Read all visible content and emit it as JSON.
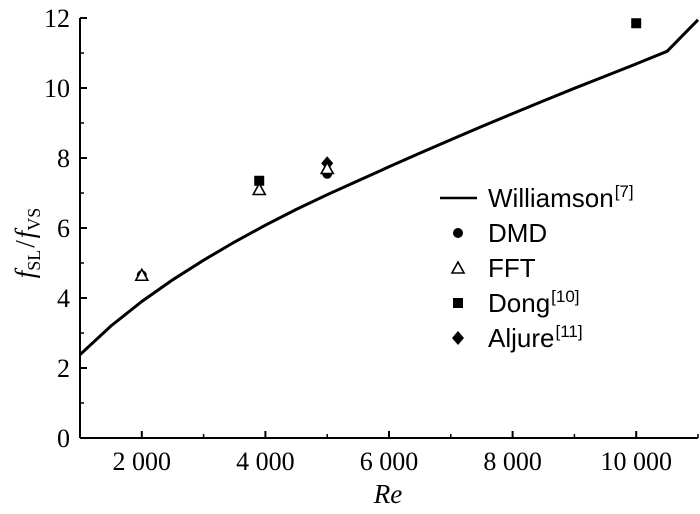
{
  "chart_data": {
    "type": "scatter",
    "xlabel": "Re",
    "ylabel": {
      "f1": "f",
      "sub1": "SL",
      "slash": "/",
      "f2": "f",
      "sub2": "VS"
    },
    "xlim": [
      1000,
      11000
    ],
    "ylim": [
      0,
      12
    ],
    "x_ticks": [
      {
        "value": 2000,
        "label": "2 000"
      },
      {
        "value": 4000,
        "label": "4 000"
      },
      {
        "value": 6000,
        "label": "6 000"
      },
      {
        "value": 8000,
        "label": "8 000"
      },
      {
        "value": 10000,
        "label": "10 000"
      }
    ],
    "y_ticks": [
      {
        "value": 0,
        "label": "0"
      },
      {
        "value": 2,
        "label": "2"
      },
      {
        "value": 4,
        "label": "4"
      },
      {
        "value": 6,
        "label": "6"
      },
      {
        "value": 8,
        "label": "8"
      },
      {
        "value": 10,
        "label": "10"
      },
      {
        "value": 12,
        "label": "12"
      }
    ],
    "grid": false,
    "legend_position": "right",
    "series": [
      {
        "name": "Williamson",
        "ref": "[7]",
        "marker": "line",
        "x": [
          1000,
          1500,
          2000,
          2500,
          3000,
          3500,
          4000,
          4500,
          5000,
          5500,
          6000,
          6500,
          7000,
          7500,
          8000,
          8500,
          9000,
          9500,
          10000,
          10500,
          11000
        ],
        "y": [
          2.38,
          3.2,
          3.9,
          4.52,
          5.08,
          5.6,
          6.08,
          6.53,
          6.95,
          7.35,
          7.75,
          8.14,
          8.52,
          8.9,
          9.27,
          9.63,
          9.99,
          10.34,
          10.69,
          11.05,
          11.95
        ]
      },
      {
        "name": "DMD",
        "ref": "",
        "marker": "circle",
        "x": [
          2000,
          5000
        ],
        "y": [
          4.65,
          7.55
        ]
      },
      {
        "name": "FFT",
        "ref": "",
        "marker": "triangle",
        "x": [
          2000,
          3900,
          5000
        ],
        "y": [
          4.65,
          7.1,
          7.7
        ]
      },
      {
        "name": "Dong",
        "ref": "[10]",
        "marker": "square",
        "x": [
          3900,
          10000
        ],
        "y": [
          7.35,
          11.85
        ]
      },
      {
        "name": "Aljure",
        "ref": "[11]",
        "marker": "diamond",
        "x": [
          5000
        ],
        "y": [
          7.85
        ]
      }
    ]
  }
}
